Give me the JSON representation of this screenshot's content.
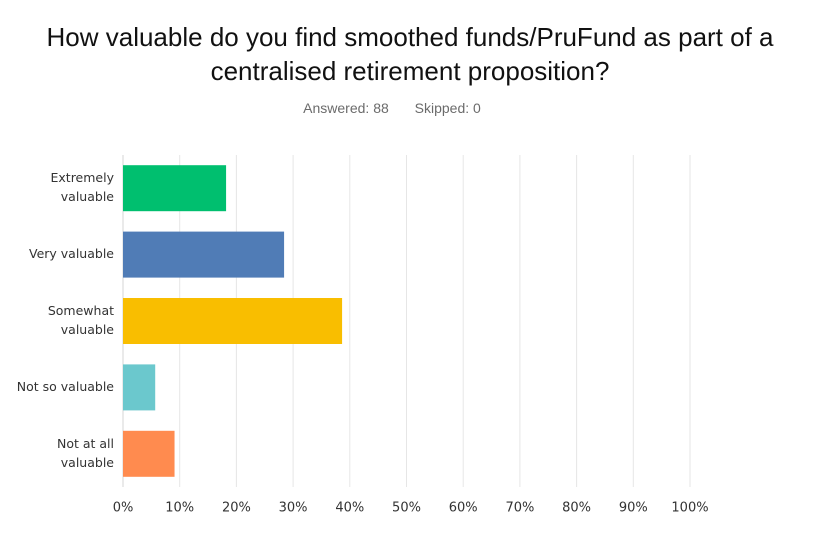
{
  "header": {
    "title_line1": "How valuable do you find smoothed funds/PruFund as part of a",
    "title_line2": "centralised retirement proposition?",
    "answered": "Answered: 88",
    "skipped": "Skipped: 0"
  },
  "chart_data": {
    "type": "bar",
    "orientation": "horizontal",
    "title": "How valuable do you find smoothed funds/PruFund as part of a centralised retirement proposition?",
    "categories": [
      [
        "Extremely",
        "valuable"
      ],
      [
        "Very valuable"
      ],
      [
        "Somewhat",
        "valuable"
      ],
      [
        "Not so valuable"
      ],
      [
        "Not at all",
        "valuable"
      ]
    ],
    "values": [
      18.18,
      28.41,
      38.64,
      5.68,
      9.09
    ],
    "colors": [
      "#00bf6f",
      "#507cb6",
      "#f9be00",
      "#6bc8cd",
      "#ff8b4f"
    ],
    "xlim": [
      0,
      100
    ],
    "xticks": [
      "0%",
      "10%",
      "20%",
      "30%",
      "40%",
      "50%",
      "60%",
      "70%",
      "80%",
      "90%",
      "100%"
    ],
    "grid": true
  }
}
